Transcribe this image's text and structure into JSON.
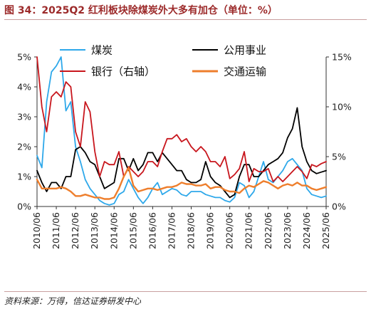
{
  "header": {
    "title": "图 34：2025Q2 红利板块除煤炭外大多有加仓（单位：%）"
  },
  "footer": {
    "source": "资料来源：万得，信达证券研发中心"
  },
  "colors": {
    "coal": "#2ea8ea",
    "utilities": "#000000",
    "bank": "#c8161d",
    "transport": "#ee7e2c"
  },
  "chart_data": {
    "type": "line",
    "title": "",
    "x_ticks": [
      "2010/06",
      "2011/06",
      "2012/06",
      "2013/06",
      "2014/06",
      "2015/06",
      "2016/06",
      "2017/06",
      "2018/06",
      "2019/06",
      "2020/06",
      "2021/06",
      "2022/06",
      "2023/06",
      "2024/06",
      "2025/06"
    ],
    "x_range": [
      2010.5,
      2025.5
    ],
    "y_left": {
      "ticks": [
        "0%",
        "1%",
        "2%",
        "3%",
        "4%",
        "5%"
      ],
      "ylim": [
        0,
        5
      ]
    },
    "y_right": {
      "ticks": [
        "0%",
        "5%",
        "10%",
        "15%"
      ],
      "ylim": [
        0,
        15
      ]
    },
    "legend": [
      "煤炭",
      "公用事业",
      "银行（右轴）",
      "交通运输"
    ],
    "legend_position": "top",
    "series": [
      {
        "name": "煤炭",
        "axis": "left",
        "color": "#2ea8ea",
        "points": [
          [
            2010.5,
            1.7
          ],
          [
            2010.75,
            1.3
          ],
          [
            2011.0,
            3.5
          ],
          [
            2011.25,
            4.5
          ],
          [
            2011.5,
            4.7
          ],
          [
            2011.75,
            5.0
          ],
          [
            2012.0,
            3.2
          ],
          [
            2012.25,
            3.5
          ],
          [
            2012.5,
            2.0
          ],
          [
            2012.75,
            1.5
          ],
          [
            2013.0,
            0.9
          ],
          [
            2013.25,
            0.6
          ],
          [
            2013.5,
            0.4
          ],
          [
            2013.75,
            0.2
          ],
          [
            2014.0,
            0.1
          ],
          [
            2014.25,
            0.05
          ],
          [
            2014.5,
            0.1
          ],
          [
            2014.75,
            0.4
          ],
          [
            2015.0,
            0.5
          ],
          [
            2015.25,
            0.9
          ],
          [
            2015.5,
            0.6
          ],
          [
            2015.75,
            0.3
          ],
          [
            2016.0,
            0.1
          ],
          [
            2016.25,
            0.3
          ],
          [
            2016.5,
            0.6
          ],
          [
            2016.75,
            0.8
          ],
          [
            2017.0,
            0.4
          ],
          [
            2017.25,
            0.5
          ],
          [
            2017.5,
            0.6
          ],
          [
            2017.75,
            0.55
          ],
          [
            2018.0,
            0.4
          ],
          [
            2018.25,
            0.35
          ],
          [
            2018.5,
            0.5
          ],
          [
            2018.75,
            0.5
          ],
          [
            2019.0,
            0.5
          ],
          [
            2019.25,
            0.4
          ],
          [
            2019.5,
            0.35
          ],
          [
            2019.75,
            0.3
          ],
          [
            2020.0,
            0.3
          ],
          [
            2020.25,
            0.2
          ],
          [
            2020.5,
            0.15
          ],
          [
            2020.75,
            0.3
          ],
          [
            2021.0,
            0.8
          ],
          [
            2021.25,
            0.7
          ],
          [
            2021.5,
            0.3
          ],
          [
            2021.75,
            0.5
          ],
          [
            2022.0,
            1.0
          ],
          [
            2022.25,
            1.5
          ],
          [
            2022.5,
            0.9
          ],
          [
            2022.75,
            0.8
          ],
          [
            2023.0,
            1.0
          ],
          [
            2023.25,
            1.2
          ],
          [
            2023.5,
            1.5
          ],
          [
            2023.75,
            1.6
          ],
          [
            2024.0,
            1.4
          ],
          [
            2024.25,
            1.2
          ],
          [
            2024.5,
            0.6
          ],
          [
            2024.75,
            0.4
          ],
          [
            2025.0,
            0.35
          ],
          [
            2025.25,
            0.3
          ],
          [
            2025.5,
            0.35
          ]
        ]
      },
      {
        "name": "公用事业",
        "axis": "left",
        "color": "#000000",
        "points": [
          [
            2010.5,
            1.2
          ],
          [
            2010.75,
            0.8
          ],
          [
            2011.0,
            0.5
          ],
          [
            2011.25,
            0.8
          ],
          [
            2011.5,
            0.8
          ],
          [
            2011.75,
            0.6
          ],
          [
            2012.0,
            1.0
          ],
          [
            2012.25,
            1.0
          ],
          [
            2012.5,
            1.9
          ],
          [
            2012.75,
            2.0
          ],
          [
            2013.0,
            1.8
          ],
          [
            2013.25,
            1.5
          ],
          [
            2013.5,
            1.4
          ],
          [
            2013.75,
            1.0
          ],
          [
            2014.0,
            0.6
          ],
          [
            2014.25,
            0.7
          ],
          [
            2014.5,
            0.8
          ],
          [
            2014.75,
            1.6
          ],
          [
            2015.0,
            1.6
          ],
          [
            2015.25,
            1.2
          ],
          [
            2015.5,
            1.6
          ],
          [
            2015.75,
            1.2
          ],
          [
            2016.0,
            1.4
          ],
          [
            2016.25,
            1.8
          ],
          [
            2016.5,
            1.8
          ],
          [
            2016.75,
            1.5
          ],
          [
            2017.0,
            1.8
          ],
          [
            2017.25,
            1.6
          ],
          [
            2017.5,
            1.4
          ],
          [
            2017.75,
            1.2
          ],
          [
            2018.0,
            1.2
          ],
          [
            2018.25,
            0.9
          ],
          [
            2018.5,
            0.8
          ],
          [
            2018.75,
            0.8
          ],
          [
            2019.0,
            0.9
          ],
          [
            2019.25,
            1.5
          ],
          [
            2019.5,
            1.0
          ],
          [
            2019.75,
            0.8
          ],
          [
            2020.0,
            0.7
          ],
          [
            2020.25,
            0.5
          ],
          [
            2020.5,
            0.3
          ],
          [
            2020.75,
            0.4
          ],
          [
            2021.0,
            1.0
          ],
          [
            2021.25,
            1.4
          ],
          [
            2021.5,
            1.4
          ],
          [
            2021.75,
            1.0
          ],
          [
            2022.0,
            1.0
          ],
          [
            2022.25,
            1.2
          ],
          [
            2022.5,
            1.4
          ],
          [
            2022.75,
            1.5
          ],
          [
            2023.0,
            1.6
          ],
          [
            2023.25,
            1.8
          ],
          [
            2023.5,
            2.3
          ],
          [
            2023.75,
            2.6
          ],
          [
            2024.0,
            3.3
          ],
          [
            2024.25,
            2.0
          ],
          [
            2024.5,
            1.5
          ],
          [
            2024.75,
            1.2
          ],
          [
            2025.0,
            1.1
          ],
          [
            2025.25,
            1.15
          ],
          [
            2025.5,
            1.2
          ]
        ]
      },
      {
        "name": "银行（右轴）",
        "axis": "right",
        "color": "#c8161d",
        "points": [
          [
            2010.5,
            15.0
          ],
          [
            2010.75,
            10.0
          ],
          [
            2011.0,
            7.5
          ],
          [
            2011.25,
            11.0
          ],
          [
            2011.5,
            11.5
          ],
          [
            2011.75,
            11.0
          ],
          [
            2012.0,
            12.5
          ],
          [
            2012.25,
            12.0
          ],
          [
            2012.5,
            7.5
          ],
          [
            2012.75,
            6.0
          ],
          [
            2013.0,
            10.5
          ],
          [
            2013.25,
            9.5
          ],
          [
            2013.5,
            5.5
          ],
          [
            2013.75,
            3.0
          ],
          [
            2014.0,
            4.5
          ],
          [
            2014.25,
            4.2
          ],
          [
            2014.5,
            4.2
          ],
          [
            2014.75,
            5.5
          ],
          [
            2015.0,
            3.0
          ],
          [
            2015.25,
            4.0
          ],
          [
            2015.5,
            3.5
          ],
          [
            2015.75,
            3.0
          ],
          [
            2016.0,
            3.5
          ],
          [
            2016.25,
            4.5
          ],
          [
            2016.5,
            4.5
          ],
          [
            2016.75,
            4.0
          ],
          [
            2017.0,
            5.5
          ],
          [
            2017.25,
            6.8
          ],
          [
            2017.5,
            6.8
          ],
          [
            2017.75,
            7.2
          ],
          [
            2018.0,
            6.5
          ],
          [
            2018.25,
            6.8
          ],
          [
            2018.5,
            6.0
          ],
          [
            2018.75,
            5.5
          ],
          [
            2019.0,
            6.0
          ],
          [
            2019.25,
            5.5
          ],
          [
            2019.5,
            4.5
          ],
          [
            2019.75,
            4.5
          ],
          [
            2020.0,
            4.0
          ],
          [
            2020.25,
            5.0
          ],
          [
            2020.5,
            2.8
          ],
          [
            2020.75,
            3.2
          ],
          [
            2021.0,
            3.8
          ],
          [
            2021.25,
            5.5
          ],
          [
            2021.5,
            2.5
          ],
          [
            2021.75,
            3.8
          ],
          [
            2022.0,
            3.5
          ],
          [
            2022.25,
            3.5
          ],
          [
            2022.5,
            3.8
          ],
          [
            2022.75,
            2.5
          ],
          [
            2023.0,
            3.0
          ],
          [
            2023.25,
            2.5
          ],
          [
            2023.5,
            3.0
          ],
          [
            2023.75,
            3.5
          ],
          [
            2024.0,
            4.0
          ],
          [
            2024.25,
            3.5
          ],
          [
            2024.5,
            2.8
          ],
          [
            2024.75,
            4.2
          ],
          [
            2025.0,
            4.0
          ],
          [
            2025.25,
            4.3
          ],
          [
            2025.5,
            4.5
          ]
        ]
      },
      {
        "name": "交通运输",
        "axis": "left",
        "color": "#ee7e2c",
        "points": [
          [
            2010.5,
            0.9
          ],
          [
            2010.75,
            0.6
          ],
          [
            2011.0,
            0.6
          ],
          [
            2011.25,
            0.6
          ],
          [
            2011.5,
            0.6
          ],
          [
            2011.75,
            0.65
          ],
          [
            2012.0,
            0.6
          ],
          [
            2012.25,
            0.5
          ],
          [
            2012.5,
            0.35
          ],
          [
            2012.75,
            0.35
          ],
          [
            2013.0,
            0.4
          ],
          [
            2013.25,
            0.35
          ],
          [
            2013.5,
            0.3
          ],
          [
            2013.75,
            0.3
          ],
          [
            2014.0,
            0.25
          ],
          [
            2014.25,
            0.25
          ],
          [
            2014.5,
            0.3
          ],
          [
            2014.75,
            0.6
          ],
          [
            2015.0,
            1.0
          ],
          [
            2015.25,
            1.3
          ],
          [
            2015.5,
            0.7
          ],
          [
            2015.75,
            0.5
          ],
          [
            2016.0,
            0.55
          ],
          [
            2016.25,
            0.6
          ],
          [
            2016.5,
            0.6
          ],
          [
            2016.75,
            0.55
          ],
          [
            2017.0,
            0.6
          ],
          [
            2017.25,
            0.65
          ],
          [
            2017.5,
            0.65
          ],
          [
            2017.75,
            0.7
          ],
          [
            2018.0,
            0.8
          ],
          [
            2018.25,
            0.75
          ],
          [
            2018.5,
            0.75
          ],
          [
            2018.75,
            0.7
          ],
          [
            2019.0,
            0.7
          ],
          [
            2019.25,
            0.75
          ],
          [
            2019.5,
            0.6
          ],
          [
            2019.75,
            0.65
          ],
          [
            2020.0,
            0.65
          ],
          [
            2020.25,
            0.55
          ],
          [
            2020.5,
            0.5
          ],
          [
            2020.75,
            0.5
          ],
          [
            2021.0,
            0.45
          ],
          [
            2021.25,
            0.6
          ],
          [
            2021.5,
            0.7
          ],
          [
            2021.75,
            0.65
          ],
          [
            2022.0,
            0.75
          ],
          [
            2022.25,
            0.85
          ],
          [
            2022.5,
            0.8
          ],
          [
            2022.75,
            0.7
          ],
          [
            2023.0,
            0.6
          ],
          [
            2023.25,
            0.7
          ],
          [
            2023.5,
            0.75
          ],
          [
            2023.75,
            0.7
          ],
          [
            2024.0,
            0.8
          ],
          [
            2024.25,
            0.7
          ],
          [
            2024.5,
            0.7
          ],
          [
            2024.75,
            0.6
          ],
          [
            2025.0,
            0.55
          ],
          [
            2025.25,
            0.6
          ],
          [
            2025.5,
            0.65
          ]
        ]
      }
    ]
  }
}
